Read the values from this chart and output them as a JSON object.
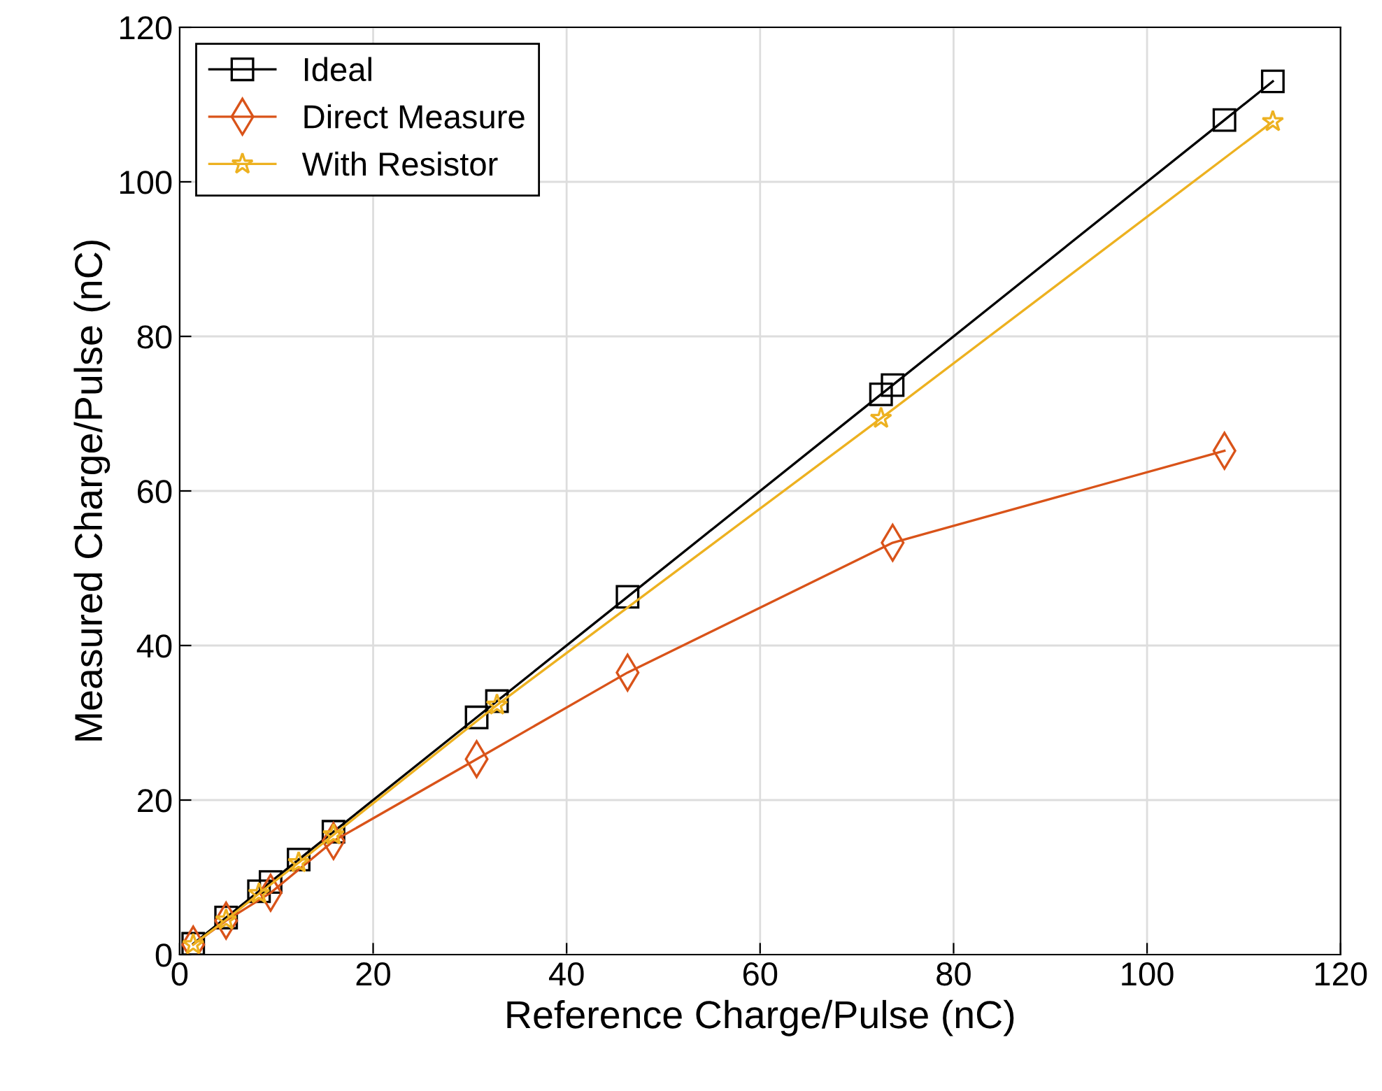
{
  "chart_data": {
    "type": "line",
    "xlabel": "Reference Charge/Pulse (nC)",
    "ylabel": "Measured Charge/Pulse (nC)",
    "xlim": [
      0,
      120
    ],
    "ylim": [
      0,
      120
    ],
    "xticks": [
      0,
      20,
      40,
      60,
      80,
      100,
      120
    ],
    "yticks": [
      0,
      20,
      40,
      60,
      80,
      100,
      120
    ],
    "grid": true,
    "legend": "top left",
    "line_style": "solid",
    "series": [
      {
        "name": "Ideal",
        "color": "#000000",
        "marker": "square",
        "x": [
          1.4,
          4.8,
          8.2,
          9.4,
          12.3,
          15.9,
          30.7,
          32.8,
          46.3,
          72.5,
          73.7,
          108,
          113
        ],
        "values": [
          1.4,
          4.8,
          8.2,
          9.4,
          12.3,
          15.9,
          30.7,
          32.8,
          46.3,
          72.5,
          73.7,
          108,
          113
        ]
      },
      {
        "name": "Direct Measure",
        "color": "#d95319",
        "marker": "diamond",
        "x": [
          1.4,
          4.8,
          9.4,
          15.9,
          30.7,
          46.3,
          73.7,
          108
        ],
        "values": [
          1.3,
          4.4,
          8.0,
          14.7,
          25.3,
          36.5,
          53.3,
          65.2
        ]
      },
      {
        "name": "With Resistor",
        "color": "#edb120",
        "marker": "star",
        "x": [
          1.4,
          4.8,
          8.2,
          12.3,
          15.9,
          32.8,
          72.5,
          113
        ],
        "values": [
          1.3,
          4.5,
          7.9,
          11.9,
          15.5,
          32.3,
          69.4,
          107.8
        ]
      }
    ]
  }
}
